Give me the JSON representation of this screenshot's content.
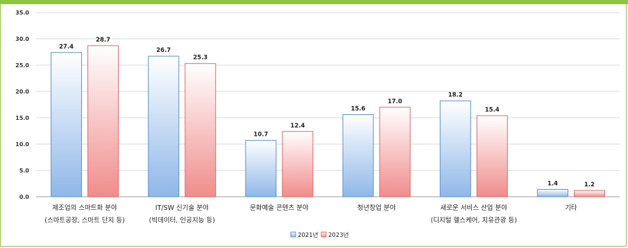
{
  "chart_data": {
    "type": "bar",
    "categories": [
      [
        "제조업의 스마트화 분야",
        "(스마트공장, 스마트 단지 등)"
      ],
      [
        "IT/SW 신기술 분야",
        "(빅데이터, 인공지능 등)"
      ],
      [
        "문화예술 콘텐츠 분야"
      ],
      [
        "청년창업 분야"
      ],
      [
        "새로운 서비스 산업 분야",
        "(디지털 헬스케어, 치유관광 등)"
      ],
      [
        "기타"
      ]
    ],
    "series": [
      {
        "name": "2021년",
        "values": [
          27.4,
          26.7,
          10.7,
          15.6,
          18.2,
          1.4
        ],
        "color": "#9ec3ee"
      },
      {
        "name": "2023년",
        "values": [
          28.7,
          25.3,
          12.4,
          17.0,
          15.4,
          1.2
        ],
        "color": "#f29a9a"
      }
    ],
    "yticks": [
      "0.0",
      "5.0",
      "10.0",
      "15.0",
      "20.0",
      "25.0",
      "30.0",
      "35.0"
    ],
    "ylim": [
      0,
      35
    ],
    "grid": true,
    "legend_position": "bottom"
  }
}
